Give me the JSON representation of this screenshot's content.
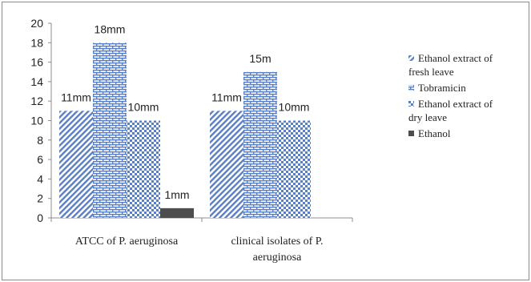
{
  "chart_data": {
    "type": "bar",
    "title": "",
    "xlabel": "",
    "ylabel": "",
    "ylim": [
      0,
      20
    ],
    "ytick_step": 2,
    "grid": false,
    "legend_position": "right",
    "categories": [
      [
        "ATCC of P. aeruginosa"
      ],
      [
        "clinical isolates of P.",
        "aeruginosa"
      ]
    ],
    "series": [
      {
        "name_lines": [
          "Ethanol extract of",
          "fresh leave"
        ],
        "pattern": "diagonal-stripes",
        "color": "#5b7fc4",
        "values": [
          11,
          11
        ],
        "labels": [
          "11mm",
          "11mm"
        ]
      },
      {
        "name_lines": [
          "Tobramicin"
        ],
        "pattern": "brick",
        "color": "#5b7fc4",
        "values": [
          18,
          15
        ],
        "labels": [
          "18mm",
          "15m"
        ]
      },
      {
        "name_lines": [
          "Ethanol extract of",
          "dry leave"
        ],
        "pattern": "checker",
        "color": "#5b7fc4",
        "values": [
          10,
          10
        ],
        "labels": [
          "10mm",
          "10mm"
        ]
      },
      {
        "name_lines": [
          "Ethanol"
        ],
        "pattern": "solid",
        "color": "#4d4d4d",
        "values": [
          1,
          0
        ],
        "labels": [
          "1mm",
          ""
        ]
      }
    ]
  }
}
